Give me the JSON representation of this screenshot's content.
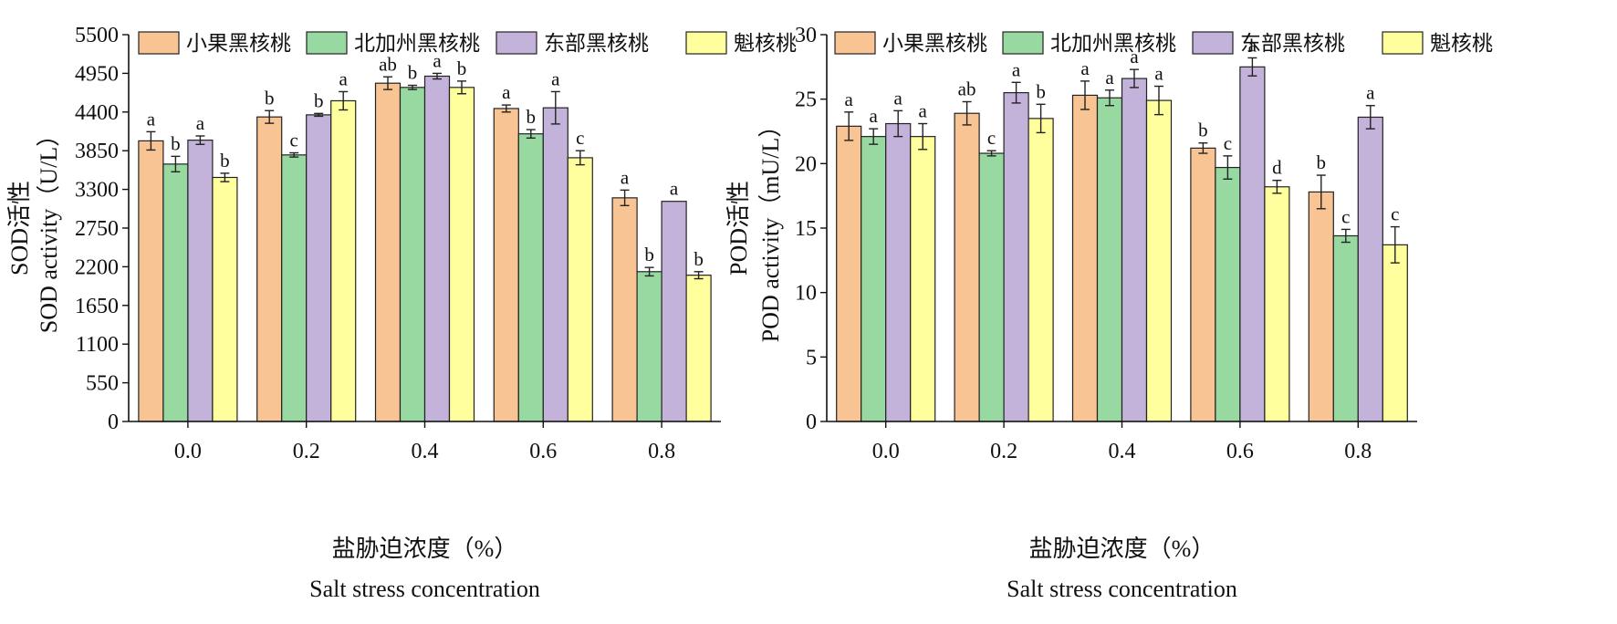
{
  "legend": [
    "小果黑核桃",
    "北加州黑核桃",
    "东部黑核桃",
    "魁核桃"
  ],
  "colors": [
    "#F9C494",
    "#98D9A1",
    "#C3B2DA",
    "#FFFF9E"
  ],
  "xlabel_cn": "盐胁迫浓度（%）",
  "xlabel_en": "Salt stress concentration",
  "chart_data": [
    {
      "type": "bar",
      "ylabel_cn": "SOD活性",
      "ylabel_en": "SOD activity（U/L）",
      "categories": [
        "0.0",
        "0.2",
        "0.4",
        "0.6",
        "0.8"
      ],
      "ylim": [
        0,
        5500
      ],
      "yticks": [
        "0",
        "550",
        "1100",
        "1650",
        "2200",
        "2750",
        "3300",
        "3850",
        "4400",
        "4950",
        "5500"
      ],
      "series": [
        {
          "name": "小果黑核桃",
          "values": [
            3990,
            4330,
            4810,
            4450,
            3180
          ],
          "errors": [
            130,
            90,
            90,
            50,
            110
          ],
          "labels": [
            "a",
            "b",
            "ab",
            "a",
            "a"
          ]
        },
        {
          "name": "北加州黑核桃",
          "values": [
            3660,
            3790,
            4750,
            4090,
            2130
          ],
          "errors": [
            110,
            30,
            30,
            60,
            60
          ],
          "labels": [
            "b",
            "c",
            "b",
            "b",
            "b"
          ]
        },
        {
          "name": "东部黑核桃",
          "values": [
            4000,
            4360,
            4910,
            4460,
            3130
          ],
          "errors": [
            60,
            20,
            40,
            230,
            0
          ],
          "labels": [
            "a",
            "b",
            "a",
            "a",
            "a"
          ]
        },
        {
          "name": "魁核桃",
          "values": [
            3470,
            4560,
            4750,
            3750,
            2080
          ],
          "errors": [
            60,
            130,
            90,
            100,
            50
          ],
          "labels": [
            "b",
            "a",
            "b",
            "c",
            "b"
          ]
        }
      ]
    },
    {
      "type": "bar",
      "ylabel_cn": "POD活性",
      "ylabel_en": "POD activity（mU/L）",
      "categories": [
        "0.0",
        "0.2",
        "0.4",
        "0.6",
        "0.8"
      ],
      "ylim": [
        0,
        30
      ],
      "yticks": [
        "0",
        "5",
        "10",
        "15",
        "20",
        "25",
        "30"
      ],
      "series": [
        {
          "name": "小果黑核桃",
          "values": [
            22.9,
            23.9,
            25.3,
            21.2,
            17.8
          ],
          "errors": [
            1.1,
            0.9,
            1.1,
            0.4,
            1.3
          ],
          "labels": [
            "a",
            "ab",
            "a",
            "b",
            "b"
          ]
        },
        {
          "name": "北加州黑核桃",
          "values": [
            22.1,
            20.8,
            25.1,
            19.7,
            14.4
          ],
          "errors": [
            0.6,
            0.2,
            0.6,
            0.9,
            0.5
          ],
          "labels": [
            "a",
            "c",
            "a",
            "c",
            "c"
          ]
        },
        {
          "name": "东部黑核桃",
          "values": [
            23.1,
            25.5,
            26.6,
            27.5,
            23.6
          ],
          "errors": [
            1.0,
            0.8,
            0.7,
            0.7,
            0.9
          ],
          "labels": [
            "a",
            "a",
            "a",
            "a",
            "a"
          ]
        },
        {
          "name": "魁核桃",
          "values": [
            22.1,
            23.5,
            24.9,
            18.2,
            13.7
          ],
          "errors": [
            1.0,
            1.1,
            1.1,
            0.5,
            1.4
          ],
          "labels": [
            "a",
            "b",
            "a",
            "d",
            "c"
          ]
        }
      ]
    }
  ]
}
